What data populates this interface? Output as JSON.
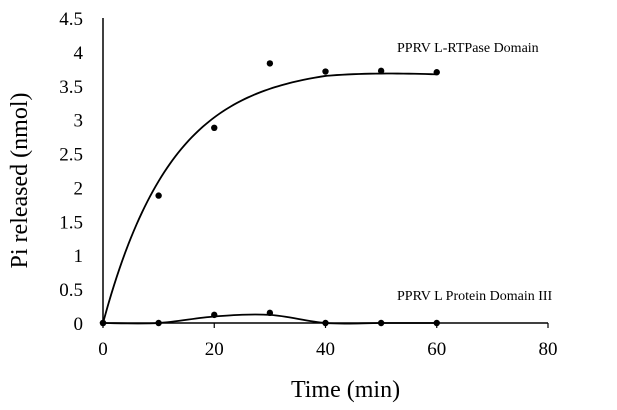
{
  "chart_data": {
    "type": "scatter",
    "title": "",
    "xlabel": "Time (min)",
    "ylabel": "Pi released (nmol)",
    "xlim": [
      0,
      80
    ],
    "ylim": [
      0,
      4.5
    ],
    "x_ticks": [
      "0",
      "20",
      "40",
      "60",
      "80"
    ],
    "y_ticks": [
      "0",
      "0.5",
      "1",
      "1.5",
      "2",
      "2.5",
      "3",
      "3.5",
      "4",
      "4.5"
    ],
    "grid": false,
    "legend": "none",
    "series": [
      {
        "name": "PPRV L-RTPase Domain",
        "x": [
          0,
          10,
          20,
          30,
          40,
          50,
          60
        ],
        "y": [
          0,
          1.88,
          2.88,
          3.83,
          3.71,
          3.72,
          3.7
        ],
        "trend_line": "smooth curve",
        "color": "#000000"
      },
      {
        "name": "PPRV L Protein Domain III",
        "x": [
          0,
          10,
          20,
          30,
          40,
          50,
          60
        ],
        "y": [
          0,
          0,
          0.12,
          0.15,
          0,
          0,
          0
        ],
        "trend_line": "smooth curve",
        "color": "#000000"
      }
    ]
  }
}
